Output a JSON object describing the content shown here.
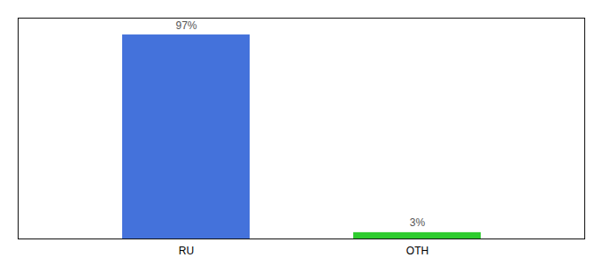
{
  "chart_data": {
    "type": "bar",
    "categories": [
      "RU",
      "OTH"
    ],
    "values": [
      97,
      3
    ],
    "value_labels": [
      "97%",
      "3%"
    ],
    "colors": [
      "#4472db",
      "#2ecc2e"
    ],
    "ylim": [
      0,
      105
    ],
    "data_labels": true,
    "tick_labels": "x",
    "grid": false
  }
}
